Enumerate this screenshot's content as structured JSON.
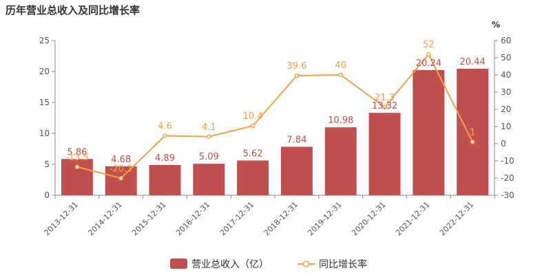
{
  "chart_data": {
    "type": "bar",
    "title": "历年营业总收入及同比增长率",
    "categories": [
      "2013-12-31",
      "2014-12-31",
      "2015-12-31",
      "2016-12-31",
      "2017-12-31",
      "2018-12-31",
      "2019-12-31",
      "2020-12-31",
      "2021-12-31",
      "2022-12-31"
    ],
    "series": [
      {
        "name": "营业总收入（亿）",
        "type": "bar",
        "axis": "left",
        "color": "#c0504d",
        "values": [
          5.86,
          4.68,
          4.89,
          5.09,
          5.62,
          7.84,
          10.98,
          13.32,
          20.24,
          20.44
        ],
        "labels": [
          "5.86",
          "4.68",
          "4.89",
          "5.09",
          "5.62",
          "7.84",
          "10.98",
          "13.32",
          "20.24",
          "20.44"
        ]
      },
      {
        "name": "同比增长率",
        "type": "line",
        "axis": "right",
        "color": "#f5a04a",
        "values": [
          -13.5,
          -20.1,
          4.6,
          4.1,
          10.4,
          39.6,
          40,
          21.3,
          52,
          1
        ],
        "labels": [
          "-13.5",
          "-20.1",
          "4.6",
          "4.1",
          "10.4",
          "39.6",
          "40",
          "21.3",
          "52",
          "1"
        ]
      }
    ],
    "y_left": {
      "min": 0,
      "max": 25,
      "ticks": [
        "0",
        "5",
        "10",
        "15",
        "20",
        "25"
      ]
    },
    "y_right": {
      "min": -30,
      "max": 60,
      "unit": "%",
      "ticks": [
        "-30",
        "-20",
        "-10",
        "0",
        "10",
        "20",
        "30",
        "40",
        "50",
        "60"
      ]
    },
    "legend_position": "bottom-center",
    "grid": false
  }
}
